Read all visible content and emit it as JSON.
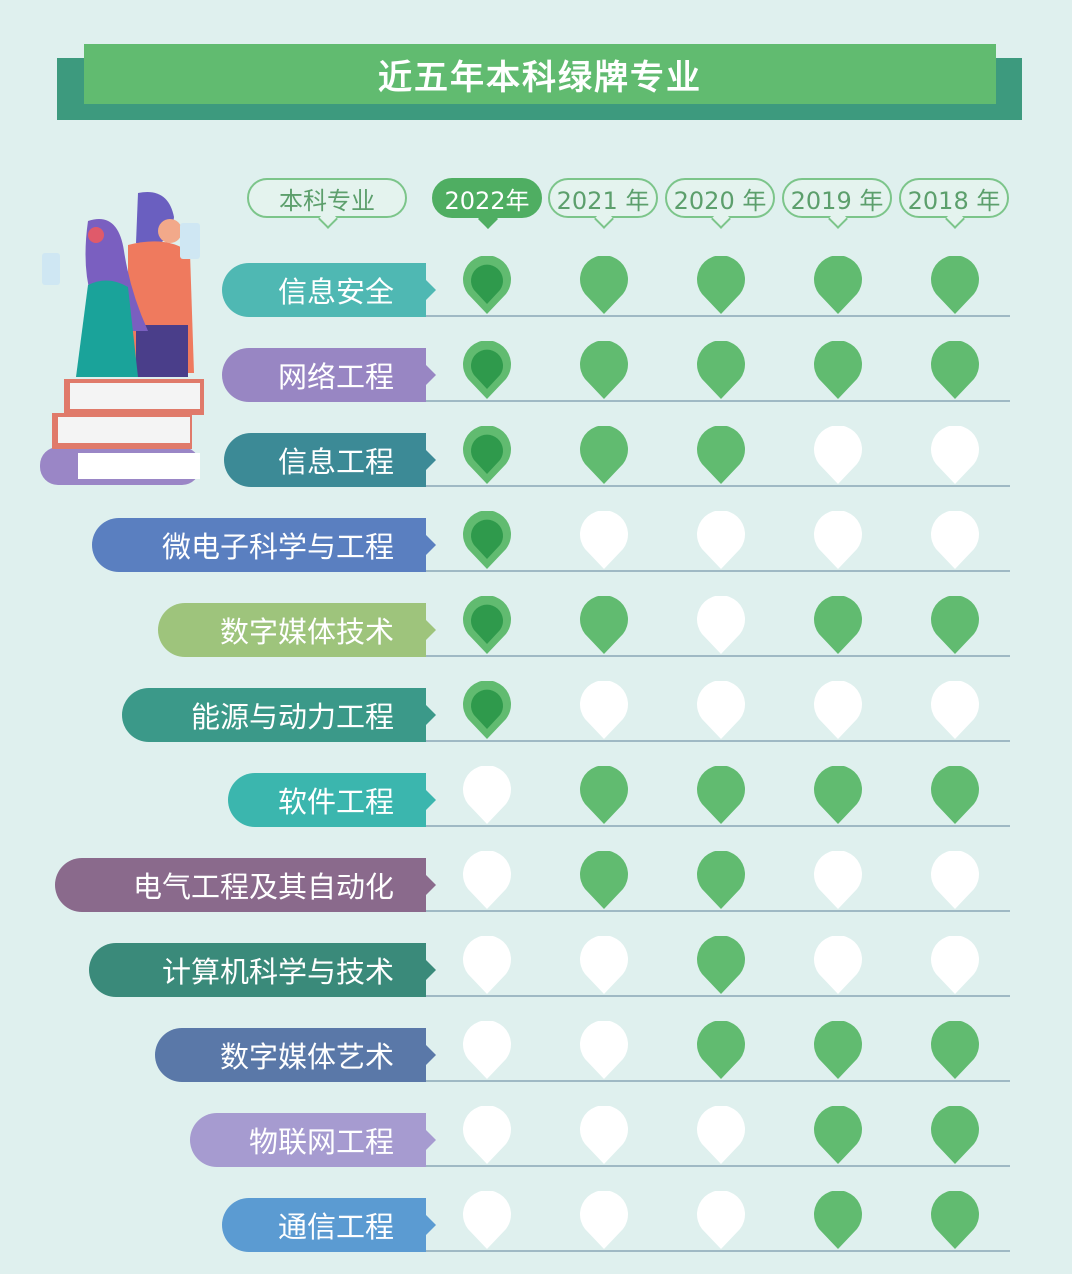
{
  "title": "近五年本科绿牌专业",
  "header": {
    "major_label": "本科专业",
    "years": [
      "2022年",
      "2021 年",
      "2020 年",
      "2019 年",
      "2018 年"
    ]
  },
  "colors": {
    "green_pin": "#61bb70",
    "highlight_pin_inner": "#2f9a4c",
    "empty_pin": "#ffffff",
    "banner": "#61bb70",
    "banner_shadow": "#3d9a7e",
    "background": "#dff0ee"
  },
  "majors": [
    {
      "name": "信息安全",
      "color": "#4fb8b3",
      "green": [
        1,
        1,
        1,
        1,
        1
      ]
    },
    {
      "name": "网络工程",
      "color": "#9886c3",
      "green": [
        1,
        1,
        1,
        1,
        1
      ]
    },
    {
      "name": "信息工程",
      "color": "#3c8a96",
      "green": [
        1,
        1,
        1,
        0,
        0
      ]
    },
    {
      "name": "微电子科学与工程",
      "color": "#5a7fc0",
      "green": [
        1,
        0,
        0,
        0,
        0
      ]
    },
    {
      "name": "数字媒体技术",
      "color": "#9ec47c",
      "green": [
        1,
        1,
        0,
        1,
        1
      ]
    },
    {
      "name": "能源与动力工程",
      "color": "#3b9989",
      "green": [
        1,
        0,
        0,
        0,
        0
      ]
    },
    {
      "name": "软件工程",
      "color": "#3bb6ae",
      "green": [
        0,
        1,
        1,
        1,
        1
      ]
    },
    {
      "name": "电气工程及其自动化",
      "color": "#8a6a8c",
      "green": [
        0,
        1,
        1,
        0,
        0
      ]
    },
    {
      "name": "计算机科学与技术",
      "color": "#3a8a7a",
      "green": [
        0,
        0,
        1,
        0,
        0
      ]
    },
    {
      "name": "数字媒体艺术",
      "color": "#5a78a8",
      "green": [
        0,
        0,
        1,
        1,
        1
      ]
    },
    {
      "name": "物联网工程",
      "color": "#a69bd0",
      "green": [
        0,
        0,
        0,
        1,
        1
      ]
    },
    {
      "name": "通信工程",
      "color": "#5b9bd2",
      "green": [
        0,
        0,
        0,
        1,
        1
      ]
    }
  ]
}
